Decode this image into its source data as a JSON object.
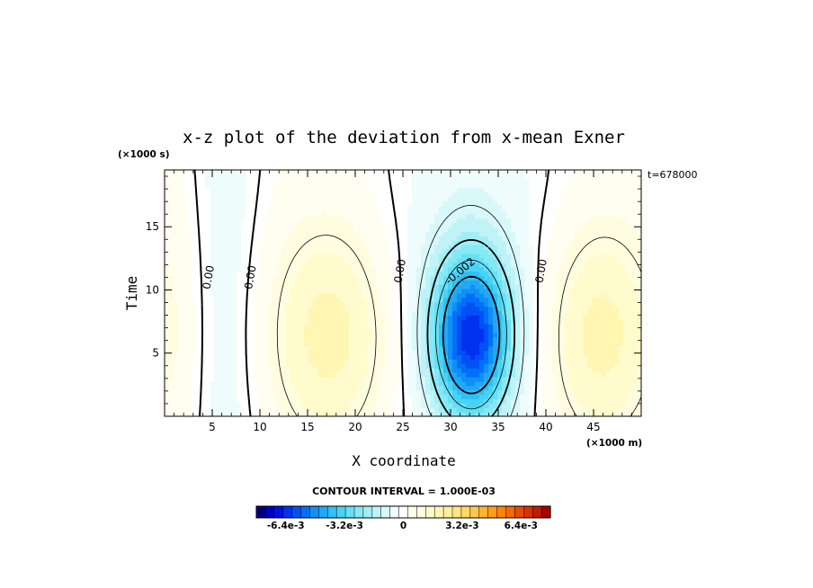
{
  "chart_data": {
    "type": "heatmap",
    "title": "x-z plot of the deviation from x-mean Exner",
    "xlabel": "X coordinate",
    "ylabel": "Time",
    "x_unit": "(×1000 m)",
    "y_unit": "(×1000 s)",
    "time_label": "t=678000",
    "contour_interval_text": "CONTOUR INTERVAL = 1.000E-03",
    "x_ticks": [
      "5",
      "10",
      "15",
      "20",
      "25",
      "30",
      "35",
      "40",
      "45"
    ],
    "y_ticks": [
      "5",
      "10",
      "15"
    ],
    "xlim": [
      0,
      50
    ],
    "ylim": [
      0,
      19.5
    ],
    "contour_labels": [
      {
        "text": "0.00",
        "x": 4.6,
        "y": 11.0
      },
      {
        "text": "0.00",
        "x": 9.0,
        "y": 11.0
      },
      {
        "text": "0.00",
        "x": 24.7,
        "y": 11.5
      },
      {
        "text": "-0.002",
        "x": 31.0,
        "y": 11.5
      },
      {
        "text": "0.00",
        "x": 39.5,
        "y": 11.5
      }
    ],
    "colorbar": {
      "min": -0.008,
      "max": 0.008,
      "tick_labels": [
        "-6.4e-3",
        "-3.2e-3",
        "0",
        "3.2e-3",
        "6.4e-3"
      ],
      "tick_values": [
        -0.0064,
        -0.0032,
        0,
        0.0032,
        0.0064
      ],
      "colors": [
        "#00007f",
        "#0000bf",
        "#0010e6",
        "#0030f0",
        "#0050f5",
        "#0070f8",
        "#1090f5",
        "#20a8f5",
        "#30c0f5",
        "#48d2f5",
        "#66e0f5",
        "#84e8f5",
        "#a2eef5",
        "#bff3f8",
        "#d8f8fa",
        "#eefcfc",
        "#ffffff",
        "#fffef0",
        "#fffde0",
        "#fffbcc",
        "#fff6b3",
        "#fff099",
        "#ffe680",
        "#ffd966",
        "#ffc84d",
        "#ffb433",
        "#ff9e1a",
        "#ff8500",
        "#f56a00",
        "#e64d00",
        "#d63300",
        "#c41a00",
        "#a80000"
      ]
    }
  }
}
